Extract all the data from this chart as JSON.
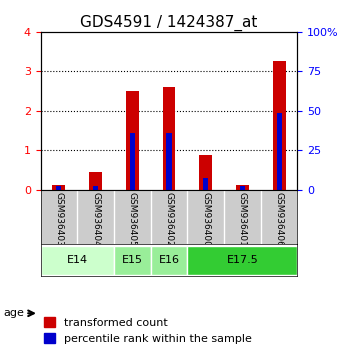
{
  "title": "GDS4591 / 1424387_at",
  "samples": [
    "GSM936403",
    "GSM936404",
    "GSM936405",
    "GSM936402",
    "GSM936400",
    "GSM936401",
    "GSM936406"
  ],
  "transformed_count": [
    0.13,
    0.45,
    2.5,
    2.6,
    0.88,
    0.12,
    3.25
  ],
  "percentile_rank": [
    0.1,
    0.1,
    1.45,
    1.45,
    0.3,
    0.1,
    1.95
  ],
  "age_groups": [
    {
      "label": "E14",
      "samples": [
        0,
        1
      ],
      "color": "#ccffcc"
    },
    {
      "label": "E15",
      "samples": [
        2
      ],
      "color": "#99ee99"
    },
    {
      "label": "E16",
      "samples": [
        3
      ],
      "color": "#99ee99"
    },
    {
      "label": "E17.5",
      "samples": [
        4,
        5,
        6
      ],
      "color": "#33cc33"
    }
  ],
  "ylim_left": [
    0,
    4
  ],
  "ylim_right": [
    0,
    100
  ],
  "yticks_left": [
    0,
    1,
    2,
    3,
    4
  ],
  "yticks_right": [
    0,
    25,
    50,
    75,
    100
  ],
  "bar_color_red": "#cc0000",
  "bar_color_blue": "#0000cc",
  "grid_color": "#000000",
  "bg_color": "#ffffff",
  "sample_bg": "#cccccc",
  "bar_width": 0.35,
  "title_fontsize": 11,
  "tick_fontsize": 8,
  "legend_fontsize": 8
}
